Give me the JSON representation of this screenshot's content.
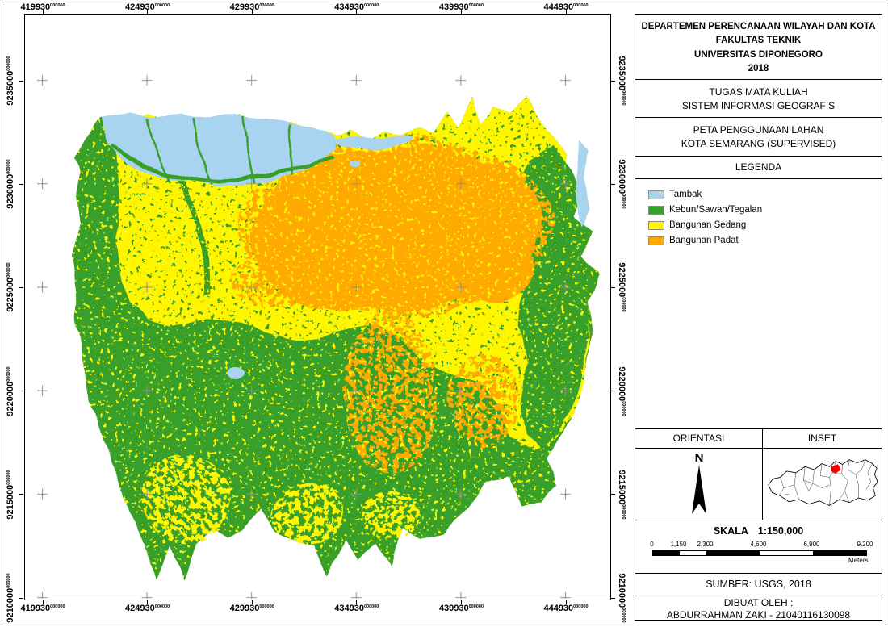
{
  "map": {
    "grid": {
      "x_labels": [
        "419930",
        "424930",
        "429930",
        "434930",
        "439930",
        "444930"
      ],
      "y_labels": [
        "9235000",
        "9230000",
        "9225000",
        "9220000",
        "9215000",
        "9210000"
      ],
      "decimals": "000000"
    }
  },
  "panel": {
    "institution": {
      "line1": "DEPARTEMEN PERENCANAAN WILAYAH DAN KOTA",
      "line2": "FAKULTAS TEKNIK",
      "line3": "UNIVERSITAS DIPONEGORO",
      "line4": "2018"
    },
    "assignment": {
      "line1": "TUGAS MATA KULIAH",
      "line2": "SISTEM INFORMASI GEOGRAFIS"
    },
    "map_title": {
      "line1": "PETA PENGGUNAAN LAHAN",
      "line2": "KOTA SEMARANG (SUPERVISED)"
    },
    "legend": {
      "title": "LEGENDA",
      "items": [
        {
          "label": "Tambak",
          "color": "#A8D4F0"
        },
        {
          "label": "Kebun/Sawah/Tegalan",
          "color": "#38A02C"
        },
        {
          "label": "Bangunan Sedang",
          "color": "#FFF500"
        },
        {
          "label": "Bangunan Padat",
          "color": "#FFAA00"
        }
      ]
    },
    "orientation": {
      "title": "ORIENTASI",
      "north": "N"
    },
    "inset": {
      "title": "INSET",
      "highlight_color": "#FF0000"
    },
    "scale": {
      "label": "SKALA",
      "ratio": "1:150,000",
      "ticks": [
        "0",
        "1,150",
        "2,300",
        "4,600",
        "6,900",
        "9,200"
      ],
      "unit": "Meters"
    },
    "source": "SUMBER: USGS, 2018",
    "credit": {
      "line1": "DIBUAT OLEH :",
      "line2": "ABDURRAHMAN ZAKI - 21040116130098"
    }
  }
}
